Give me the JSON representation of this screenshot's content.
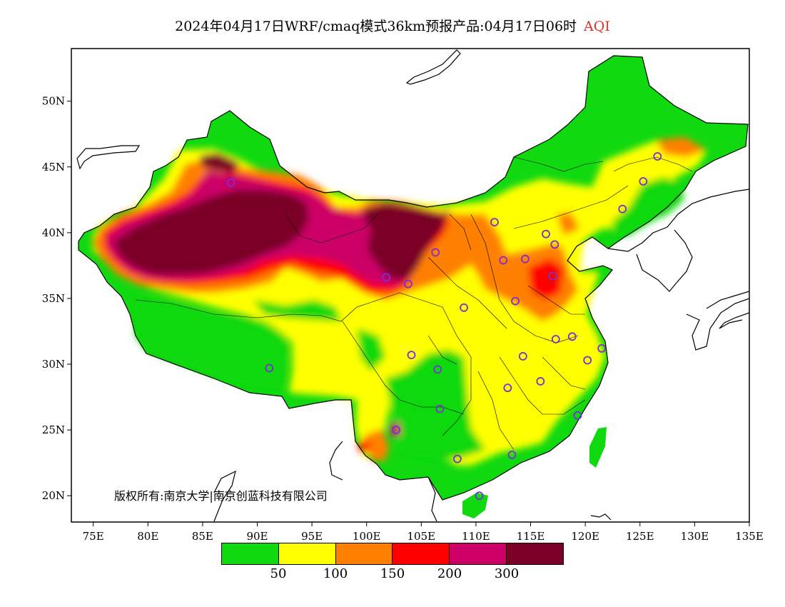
{
  "title": {
    "text": "2024年04月17日WRF/cmaq模式36km预报产品:04月17日06时",
    "variable": "AQI",
    "variable_color": "#e0302a"
  },
  "copyright": "版权所有:南京大学|南京创蓝科技有限公司",
  "map": {
    "lon_range": [
      73,
      135
    ],
    "lat_range": [
      18,
      54
    ],
    "lon_ticks": [
      "75E",
      "80E",
      "85E",
      "90E",
      "95E",
      "100E",
      "105E",
      "110E",
      "115E",
      "120E",
      "125E",
      "130E",
      "135E"
    ],
    "lat_ticks": [
      "20N",
      "25N",
      "30N",
      "35N",
      "40N",
      "45N",
      "50N"
    ],
    "background_fill": "#10d910"
  },
  "legend": {
    "colors": [
      "#10d910",
      "#ffff00",
      "#ff8000",
      "#ff0000",
      "#cc0066",
      "#7a0028"
    ],
    "labels": [
      "50",
      "100",
      "150",
      "200",
      "300"
    ]
  },
  "stations": [
    {
      "lon": 87.6,
      "lat": 43.8
    },
    {
      "lon": 91.1,
      "lat": 29.7
    },
    {
      "lon": 101.8,
      "lat": 36.6
    },
    {
      "lon": 103.8,
      "lat": 36.1
    },
    {
      "lon": 106.3,
      "lat": 38.5
    },
    {
      "lon": 111.7,
      "lat": 40.8
    },
    {
      "lon": 116.4,
      "lat": 39.9
    },
    {
      "lon": 117.2,
      "lat": 39.1
    },
    {
      "lon": 114.5,
      "lat": 38.0
    },
    {
      "lon": 112.5,
      "lat": 37.9
    },
    {
      "lon": 117.0,
      "lat": 36.7
    },
    {
      "lon": 113.6,
      "lat": 34.8
    },
    {
      "lon": 108.9,
      "lat": 34.3
    },
    {
      "lon": 104.1,
      "lat": 30.7
    },
    {
      "lon": 106.5,
      "lat": 29.6
    },
    {
      "lon": 106.7,
      "lat": 26.6
    },
    {
      "lon": 102.7,
      "lat": 25.0
    },
    {
      "lon": 108.3,
      "lat": 22.8
    },
    {
      "lon": 113.3,
      "lat": 23.1
    },
    {
      "lon": 110.3,
      "lat": 20.0
    },
    {
      "lon": 119.3,
      "lat": 26.1
    },
    {
      "lon": 115.9,
      "lat": 28.7
    },
    {
      "lon": 112.9,
      "lat": 28.2
    },
    {
      "lon": 114.3,
      "lat": 30.6
    },
    {
      "lon": 117.3,
      "lat": 31.9
    },
    {
      "lon": 118.8,
      "lat": 32.1
    },
    {
      "lon": 120.2,
      "lat": 30.3
    },
    {
      "lon": 121.5,
      "lat": 31.2
    },
    {
      "lon": 123.4,
      "lat": 41.8
    },
    {
      "lon": 125.3,
      "lat": 43.9
    },
    {
      "lon": 126.6,
      "lat": 45.8
    }
  ]
}
